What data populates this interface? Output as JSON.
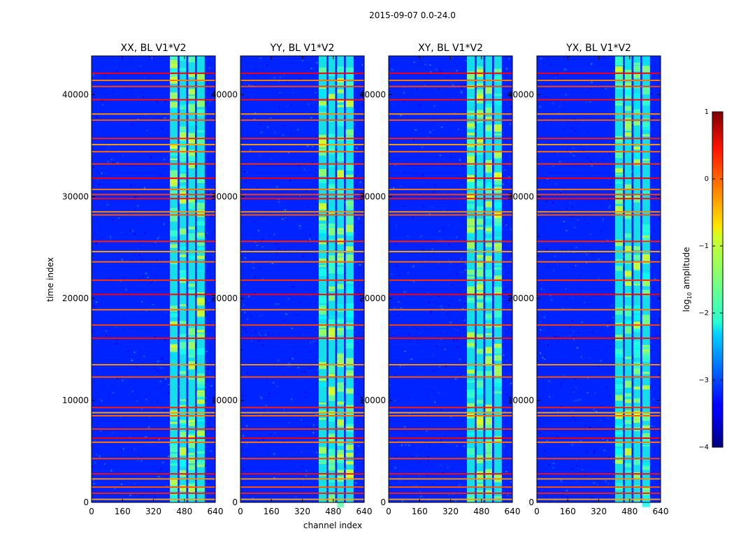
{
  "figure": {
    "suptitle": "2015-09-07 0.0-24.0",
    "ylabel": "time index",
    "xlabel": "channel index",
    "colorbar_label_prefix": "log",
    "colorbar_label_sub": "10",
    "colorbar_label_suffix": " amplitude",
    "colorbar_ticks": [
      1,
      0,
      -1,
      -2,
      -3,
      -4
    ],
    "colorbar_tick_labels": [
      "1",
      "0",
      "−1",
      "−2",
      "−3",
      "−4"
    ],
    "colorbar_range": [
      -4,
      1
    ]
  },
  "chart_data": [
    {
      "type": "heatmap",
      "title": "XX, BL V1*V2",
      "xlabel": "channel index",
      "ylabel": "time index",
      "xlim": [
        0,
        640
      ],
      "ylim": [
        0,
        43800
      ],
      "xticks": [
        0,
        160,
        320,
        480,
        640
      ],
      "xtick_labels": [
        "0",
        "160",
        "320",
        "480",
        "640"
      ],
      "yticks": [
        0,
        10000,
        20000,
        30000,
        40000
      ],
      "ytick_labels": [
        "0",
        "10000",
        "20000",
        "30000",
        "40000"
      ],
      "color_scale": "log10 amplitude",
      "background_level": -3.2,
      "bright_channel_bands": [
        [
          405,
          445
        ],
        [
          455,
          490
        ],
        [
          500,
          535
        ],
        [
          545,
          585
        ]
      ],
      "flagged_time_rows": [
        300,
        900,
        1500,
        2300,
        2800,
        4300,
        5900,
        6300,
        7200,
        8500,
        8800,
        9300,
        12300,
        13500,
        16100,
        17400,
        18900,
        20400,
        21800,
        23600,
        24600,
        25600,
        28200,
        28500,
        29800,
        30200,
        30700,
        31800,
        33200,
        34400,
        35100,
        35700,
        37500,
        38100,
        39500,
        40800,
        41400,
        42100
      ]
    },
    {
      "type": "heatmap",
      "title": "YY, BL V1*V2",
      "xlabel": "channel index",
      "ylabel": "time index",
      "xlim": [
        0,
        640
      ],
      "ylim": [
        0,
        43800
      ],
      "xticks": [
        0,
        160,
        320,
        480,
        640
      ],
      "xtick_labels": [
        "0",
        "160",
        "320",
        "480",
        "640"
      ],
      "yticks": [
        0,
        10000,
        20000,
        30000,
        40000
      ],
      "ytick_labels": [
        "0",
        "10000",
        "20000",
        "30000",
        "40000"
      ],
      "color_scale": "log10 amplitude",
      "background_level": -3.2,
      "bright_channel_bands": [
        [
          405,
          445
        ],
        [
          455,
          490
        ],
        [
          500,
          535
        ],
        [
          545,
          585
        ]
      ],
      "flagged_time_rows": [
        300,
        900,
        1500,
        2300,
        2800,
        4300,
        5900,
        6300,
        7200,
        8500,
        8800,
        9300,
        12300,
        13500,
        16100,
        17400,
        18900,
        20400,
        21800,
        23600,
        24600,
        25600,
        28200,
        28500,
        29800,
        30200,
        30700,
        31800,
        33200,
        34400,
        35100,
        35700,
        37500,
        38100,
        39500,
        40800,
        41400,
        42100
      ]
    },
    {
      "type": "heatmap",
      "title": "XY, BL V1*V2",
      "xlabel": "channel index",
      "ylabel": "time index",
      "xlim": [
        0,
        640
      ],
      "ylim": [
        0,
        43800
      ],
      "xticks": [
        0,
        160,
        320,
        480,
        640
      ],
      "xtick_labels": [
        "0",
        "160",
        "320",
        "480",
        "640"
      ],
      "yticks": [
        0,
        10000,
        20000,
        30000,
        40000
      ],
      "ytick_labels": [
        "0",
        "10000",
        "20000",
        "30000",
        "40000"
      ],
      "color_scale": "log10 amplitude",
      "background_level": -3.2,
      "bright_channel_bands": [
        [
          405,
          445
        ],
        [
          455,
          490
        ],
        [
          500,
          535
        ],
        [
          545,
          585
        ]
      ],
      "flagged_time_rows": [
        300,
        900,
        1500,
        2300,
        2800,
        4300,
        5900,
        6300,
        7200,
        8500,
        8800,
        9300,
        12300,
        13500,
        16100,
        17400,
        18900,
        20400,
        21800,
        23600,
        24600,
        25600,
        28200,
        28500,
        29800,
        30200,
        30700,
        31800,
        33200,
        34400,
        35100,
        35700,
        37500,
        38100,
        39500,
        40800,
        41400,
        42100
      ]
    },
    {
      "type": "heatmap",
      "title": "YX, BL V1*V2",
      "xlabel": "channel index",
      "ylabel": "time index",
      "xlim": [
        0,
        640
      ],
      "ylim": [
        0,
        43800
      ],
      "xticks": [
        0,
        160,
        320,
        480,
        640
      ],
      "xtick_labels": [
        "0",
        "160",
        "320",
        "480",
        "640"
      ],
      "yticks": [
        0,
        10000,
        20000,
        30000,
        40000
      ],
      "ytick_labels": [
        "0",
        "10000",
        "20000",
        "30000",
        "40000"
      ],
      "color_scale": "log10 amplitude",
      "background_level": -3.2,
      "bright_channel_bands": [
        [
          405,
          445
        ],
        [
          455,
          490
        ],
        [
          500,
          535
        ],
        [
          545,
          585
        ]
      ],
      "flagged_time_rows": [
        300,
        900,
        1500,
        2300,
        2800,
        4300,
        5900,
        6300,
        7200,
        8500,
        8800,
        9300,
        12300,
        13500,
        16100,
        17400,
        18900,
        20400,
        21800,
        23600,
        24600,
        25600,
        28200,
        28500,
        29800,
        30200,
        30700,
        31800,
        33200,
        34400,
        35100,
        35700,
        37500,
        38100,
        39500,
        40800,
        41400,
        42100
      ]
    }
  ]
}
